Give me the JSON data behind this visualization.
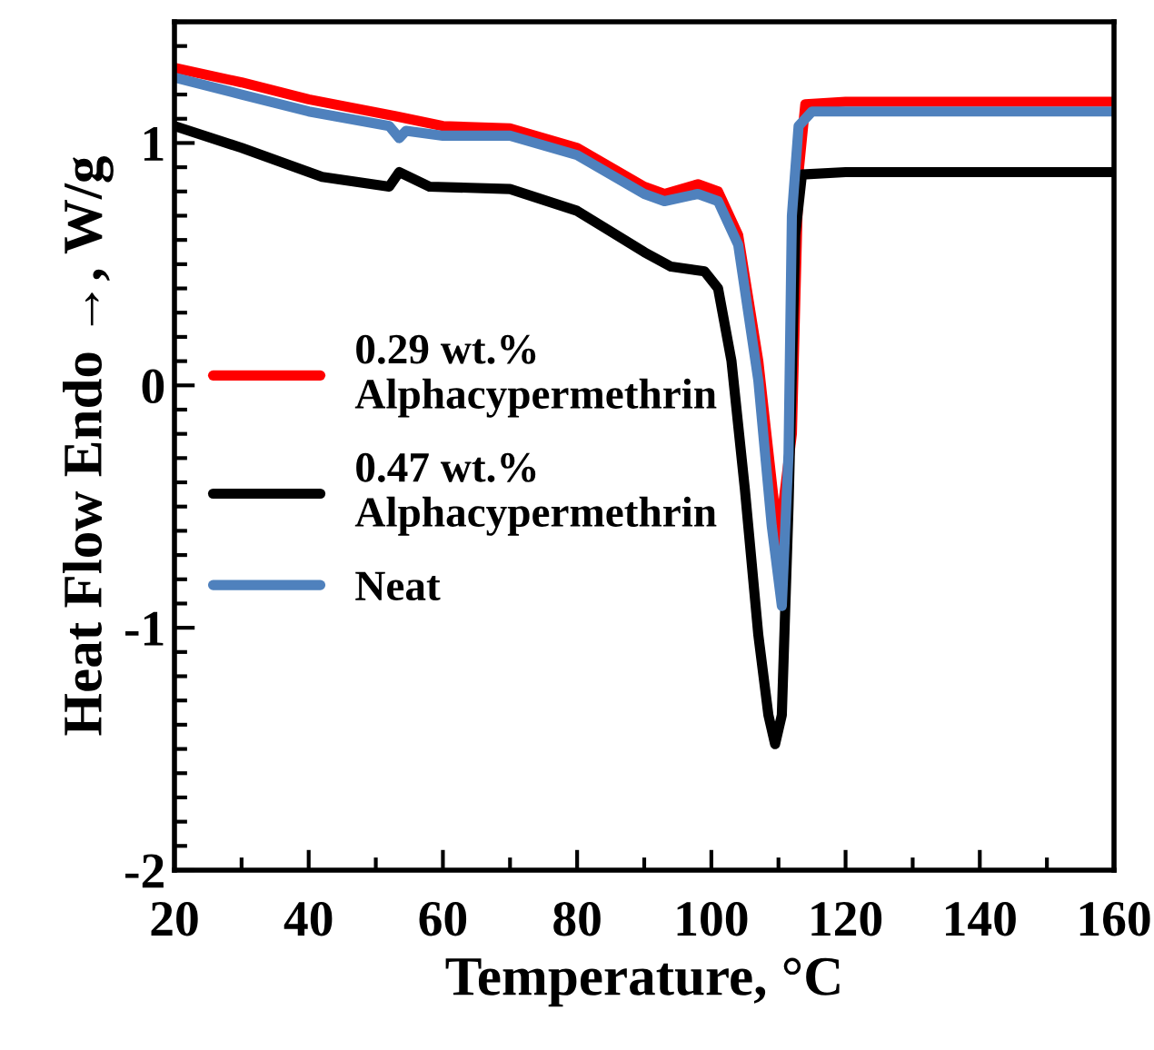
{
  "chart_data": {
    "type": "line",
    "xlabel": "Temperature, °C",
    "ylabel": "Heat Flow Endo →, W/g",
    "xlim": [
      20,
      160
    ],
    "xticks": [
      20,
      40,
      60,
      80,
      100,
      120,
      140,
      160
    ],
    "ylim": [
      -2,
      1.5
    ],
    "yticks": [
      -2,
      -1,
      0,
      1
    ],
    "grid": false,
    "legend": "left",
    "marker": "none",
    "line_style": "solid",
    "series": [
      {
        "name": "0.29 wt.%\nAlphacypermethrin",
        "color": "#ff0000",
        "x": [
          20,
          30,
          40,
          53,
          60,
          70,
          80,
          90,
          93,
          98,
          101,
          104,
          107,
          110,
          112,
          113,
          114,
          120,
          140,
          160
        ],
        "values": [
          1.31,
          1.25,
          1.18,
          1.11,
          1.07,
          1.06,
          0.98,
          0.82,
          0.79,
          0.83,
          0.8,
          0.62,
          0.1,
          -0.65,
          -0.2,
          0.88,
          1.16,
          1.17,
          1.17,
          1.17
        ]
      },
      {
        "name": "0.47 wt.%\nAlphacypermethrin",
        "color": "#000000",
        "x": [
          20,
          30,
          42,
          52,
          53.5,
          58,
          70,
          80,
          90,
          94,
          99,
          101,
          103,
          105,
          107,
          108.5,
          109.5,
          110.5,
          111.5,
          112.5,
          113.5,
          120,
          140,
          160
        ],
        "values": [
          1.07,
          0.98,
          0.86,
          0.82,
          0.88,
          0.82,
          0.81,
          0.72,
          0.55,
          0.49,
          0.47,
          0.4,
          0.1,
          -0.43,
          -1.03,
          -1.36,
          -1.48,
          -1.36,
          -0.5,
          0.62,
          0.87,
          0.88,
          0.88,
          0.88
        ]
      },
      {
        "name": "Neat",
        "color": "#4f81bd",
        "x": [
          20,
          30,
          40,
          52,
          53.5,
          54.5,
          60,
          70,
          80,
          90,
          93,
          98,
          101,
          104,
          107,
          109,
          110.5,
          111.5,
          112,
          113,
          115,
          120,
          140,
          160
        ],
        "values": [
          1.27,
          1.2,
          1.13,
          1.07,
          1.02,
          1.05,
          1.03,
          1.03,
          0.95,
          0.79,
          0.76,
          0.79,
          0.76,
          0.58,
          0.02,
          -0.58,
          -0.91,
          -0.28,
          0.7,
          1.07,
          1.13,
          1.13,
          1.13,
          1.13
        ]
      }
    ]
  }
}
